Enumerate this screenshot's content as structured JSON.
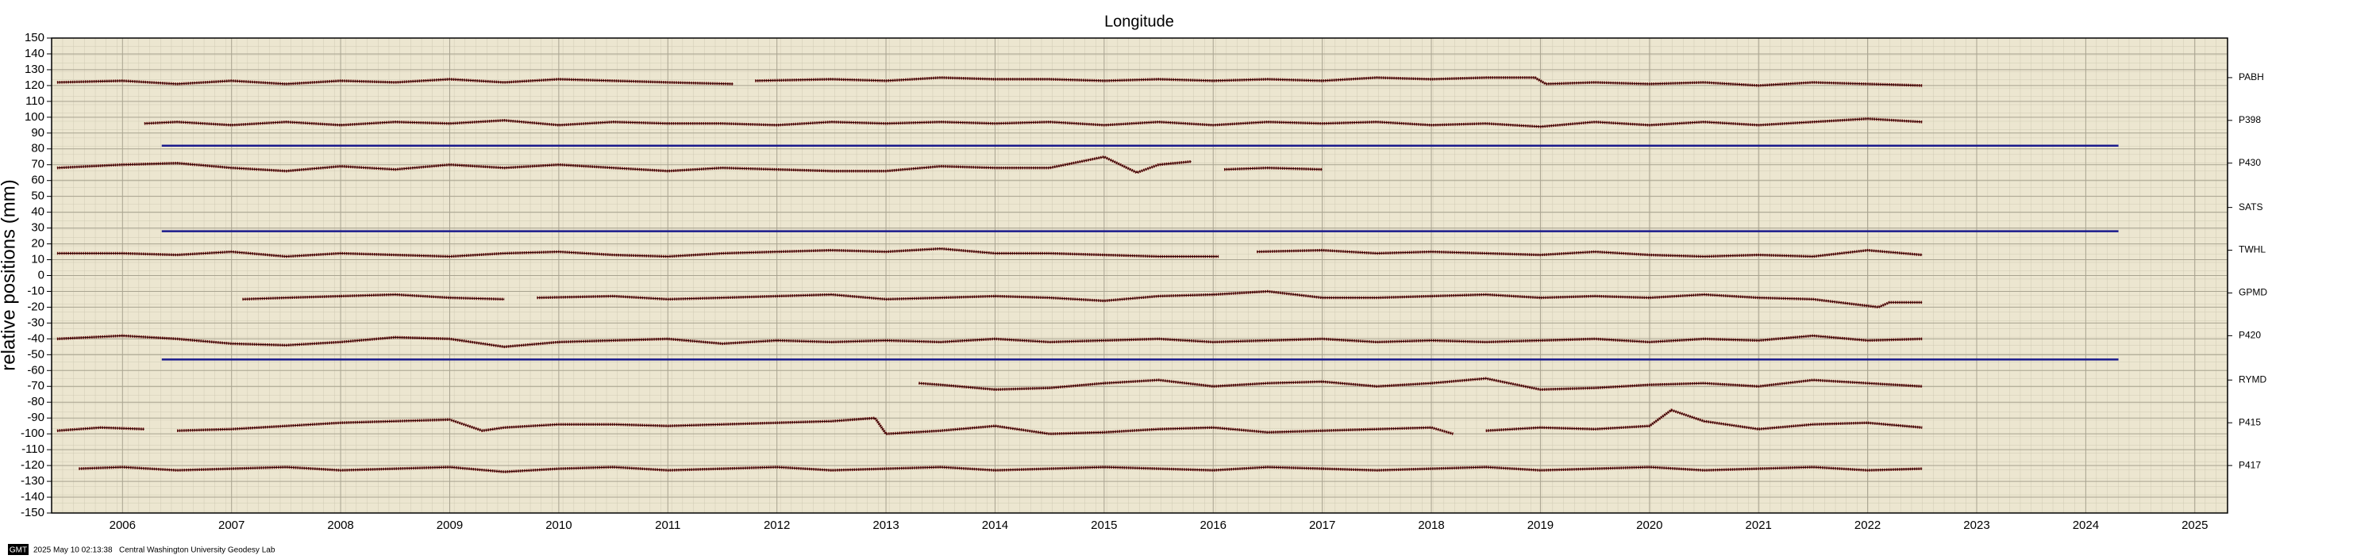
{
  "chart_data": {
    "type": "line",
    "title": "Longitude",
    "y_label": "relative positions (mm)",
    "xlim": [
      2005.85,
      2025.8
    ],
    "ylim": [
      -150,
      150
    ],
    "yticks": [
      -150,
      -140,
      -130,
      -120,
      -110,
      -100,
      -90,
      -80,
      -70,
      -60,
      -50,
      -40,
      -30,
      -20,
      -10,
      0,
      10,
      20,
      30,
      40,
      50,
      60,
      70,
      80,
      90,
      100,
      110,
      120,
      130,
      140,
      150
    ],
    "xticks": [
      {
        "value": 2006.5,
        "label": "2006"
      },
      {
        "value": 2007.5,
        "label": "2007"
      },
      {
        "value": 2008.5,
        "label": "2008"
      },
      {
        "value": 2009.5,
        "label": "2009"
      },
      {
        "value": 2010.5,
        "label": "2010"
      },
      {
        "value": 2011.5,
        "label": "2011"
      },
      {
        "value": 2012.5,
        "label": "2012"
      },
      {
        "value": 2013.5,
        "label": "2013"
      },
      {
        "value": 2014.5,
        "label": "2014"
      },
      {
        "value": 2015.5,
        "label": "2015"
      },
      {
        "value": 2016.5,
        "label": "2016"
      },
      {
        "value": 2017.5,
        "label": "2017"
      },
      {
        "value": 2018.5,
        "label": "2018"
      },
      {
        "value": 2019.5,
        "label": "2019"
      },
      {
        "value": 2020.5,
        "label": "2020"
      },
      {
        "value": 2021.5,
        "label": "2021"
      },
      {
        "value": 2022.5,
        "label": "2022"
      },
      {
        "value": 2023.5,
        "label": "2023"
      },
      {
        "value": 2024.5,
        "label": "2024"
      },
      {
        "value": 2025.5,
        "label": "2025"
      }
    ],
    "y2ticks": [
      {
        "value": 125,
        "label": "PABH"
      },
      {
        "value": 98,
        "label": "P398"
      },
      {
        "value": 71,
        "label": "P430"
      },
      {
        "value": 43,
        "label": "SATS"
      },
      {
        "value": 16,
        "label": "TWHL"
      },
      {
        "value": -11,
        "label": "GPMD"
      },
      {
        "value": -38,
        "label": "P420"
      },
      {
        "value": -66,
        "label": "RYMD"
      },
      {
        "value": -93,
        "label": "P415"
      },
      {
        "value": -120,
        "label": "P417"
      }
    ],
    "grid": true,
    "background": "#ece6d0",
    "color": "#6e0b0b",
    "hline_color": "#1a1a8c",
    "hlines": [
      {
        "y": 82,
        "x": [
          2006.86,
          2024.8
        ]
      },
      {
        "y": 28,
        "x": [
          2006.86,
          2024.8
        ]
      },
      {
        "y": -53,
        "x": [
          2006.86,
          2024.8
        ]
      }
    ],
    "series": [
      {
        "x": [
          2005.9,
          2006.5,
          2007,
          2007.5,
          2008,
          2008.5,
          2009,
          2009.5,
          2010,
          2010.5,
          2011,
          2011.5,
          2012.1,
          2012.2,
          2012.3,
          2013,
          2013.5,
          2014,
          2014.5,
          2015,
          2015.5,
          2016,
          2016.5,
          2017,
          2017.5,
          2018,
          2018.5,
          2019,
          2019.45,
          2019.55,
          2020,
          2020.5,
          2021,
          2021.5,
          2022,
          2022.5,
          2023
        ],
        "values": [
          122,
          123,
          121,
          123,
          121,
          123,
          122,
          124,
          122,
          124,
          123,
          122,
          121,
          null,
          123,
          124,
          123,
          125,
          124,
          124,
          123,
          124,
          123,
          124,
          123,
          125,
          124,
          125,
          125,
          121,
          122,
          121,
          122,
          120,
          122,
          121,
          120
        ]
      },
      {
        "x": [
          2006.7,
          2007,
          2007.5,
          2008,
          2008.5,
          2009,
          2009.5,
          2010,
          2010.5,
          2011,
          2011.5,
          2012,
          2012.5,
          2013,
          2013.5,
          2014,
          2014.5,
          2015,
          2015.5,
          2016,
          2016.5,
          2017,
          2017.5,
          2018,
          2018.5,
          2019,
          2019.5,
          2020,
          2020.5,
          2021,
          2021.5,
          2022,
          2022.5,
          2023
        ],
        "values": [
          96,
          97,
          95,
          97,
          95,
          97,
          96,
          98,
          95,
          97,
          96,
          96,
          95,
          97,
          96,
          97,
          96,
          97,
          95,
          97,
          95,
          97,
          96,
          97,
          95,
          96,
          94,
          97,
          95,
          97,
          95,
          97,
          99,
          97
        ]
      },
      {
        "x": [
          2005.9,
          2006.5,
          2007,
          2007.5,
          2008,
          2008.5,
          2009,
          2009.5,
          2010,
          2010.5,
          2011,
          2011.5,
          2012,
          2012.5,
          2013,
          2013.5,
          2014,
          2014.5,
          2015,
          2015.5,
          2015.8,
          2016,
          2016.3,
          2016.5,
          2016.6,
          2017,
          2017.5
        ],
        "values": [
          68,
          70,
          71,
          68,
          66,
          69,
          67,
          70,
          68,
          70,
          68,
          66,
          68,
          67,
          66,
          66,
          69,
          68,
          68,
          75,
          65,
          70,
          72,
          null,
          67,
          68,
          67
        ]
      },
      {
        "x": [
          2005.9,
          2006.5,
          2007,
          2007.5,
          2008,
          2008.5,
          2009,
          2009.5,
          2010,
          2010.5,
          2011,
          2011.5,
          2012,
          2012.5,
          2013,
          2013.5,
          2014,
          2014.5,
          2015,
          2015.5,
          2016,
          2016.55,
          2016.7,
          2016.9,
          2017.5,
          2018,
          2018.5,
          2019,
          2019.5,
          2020,
          2020.5,
          2021,
          2021.5,
          2022,
          2022.5,
          2023
        ],
        "values": [
          14,
          14,
          13,
          15,
          12,
          14,
          13,
          12,
          14,
          15,
          13,
          12,
          14,
          15,
          16,
          15,
          17,
          14,
          14,
          13,
          12,
          12,
          null,
          15,
          16,
          14,
          15,
          14,
          13,
          15,
          13,
          12,
          13,
          12,
          16,
          13
        ]
      },
      {
        "x": [
          2007.6,
          2008,
          2008.5,
          2009,
          2009.5,
          2010,
          2010.2,
          2010.3,
          2011,
          2011.5,
          2012,
          2012.5,
          2013,
          2013.5,
          2014,
          2014.5,
          2015,
          2015.5,
          2016,
          2016.5,
          2017,
          2017.5,
          2018,
          2018.5,
          2019,
          2019.5,
          2020,
          2020.5,
          2021,
          2021.5,
          2022,
          2022.6,
          2022.7,
          2023
        ],
        "values": [
          -15,
          -14,
          -13,
          -12,
          -14,
          -15,
          null,
          -14,
          -13,
          -15,
          -14,
          -13,
          -12,
          -15,
          -14,
          -13,
          -14,
          -16,
          -13,
          -12,
          -10,
          -14,
          -14,
          -13,
          -12,
          -14,
          -13,
          -14,
          -12,
          -14,
          -15,
          -20,
          -17,
          -17
        ]
      },
      {
        "x": [
          2005.9,
          2006.5,
          2007,
          2007.5,
          2008,
          2008.5,
          2009,
          2009.5,
          2010,
          2010.5,
          2011,
          2011.5,
          2012,
          2012.5,
          2013,
          2013.5,
          2014,
          2014.5,
          2015,
          2015.5,
          2016,
          2016.5,
          2017,
          2017.5,
          2018,
          2018.5,
          2019,
          2019.5,
          2020,
          2020.5,
          2021,
          2021.5,
          2022,
          2022.5,
          2023
        ],
        "values": [
          -40,
          -38,
          -40,
          -43,
          -44,
          -42,
          -39,
          -40,
          -45,
          -42,
          -41,
          -40,
          -43,
          -41,
          -42,
          -41,
          -42,
          -40,
          -42,
          -41,
          -40,
          -42,
          -41,
          -40,
          -42,
          -41,
          -42,
          -41,
          -40,
          -42,
          -40,
          -41,
          -38,
          -41,
          -40
        ]
      },
      {
        "x": [
          2013.8,
          2014,
          2014.5,
          2015,
          2015.5,
          2016,
          2016.5,
          2017,
          2017.5,
          2018,
          2018.5,
          2019,
          2019.5,
          2020,
          2020.5,
          2021,
          2021.5,
          2022,
          2022.5,
          2023
        ],
        "values": [
          -68,
          -69,
          -72,
          -71,
          -68,
          -66,
          -70,
          -68,
          -67,
          -70,
          -68,
          -65,
          -72,
          -71,
          -69,
          -68,
          -70,
          -66,
          -68,
          -70
        ]
      },
      {
        "x": [
          2005.9,
          2006.3,
          2006.7,
          2006.8,
          2007,
          2007.5,
          2008,
          2008.5,
          2009,
          2009.5,
          2009.8,
          2010,
          2010.5,
          2011,
          2011.5,
          2012,
          2012.5,
          2013,
          2013.4,
          2013.5,
          2014,
          2014.5,
          2015,
          2015.5,
          2016,
          2016.5,
          2017,
          2017.5,
          2018,
          2018.5,
          2018.7,
          2018.8,
          2019,
          2019.5,
          2020,
          2020.5,
          2020.7,
          2021,
          2021.5,
          2022,
          2022.5,
          2023
        ],
        "values": [
          -98,
          -96,
          -97,
          null,
          -98,
          -97,
          -95,
          -93,
          -92,
          -91,
          -98,
          -96,
          -94,
          -94,
          -95,
          -94,
          -93,
          -92,
          -90,
          -100,
          -98,
          -95,
          -100,
          -99,
          -97,
          -96,
          -99,
          -98,
          -97,
          -96,
          -100,
          null,
          -98,
          -96,
          -97,
          -95,
          -85,
          -92,
          -97,
          -94,
          -93,
          -96
        ]
      },
      {
        "x": [
          2006.1,
          2006.5,
          2007,
          2007.5,
          2008,
          2008.5,
          2009,
          2009.5,
          2010,
          2010.5,
          2011,
          2011.5,
          2012,
          2012.5,
          2013,
          2013.5,
          2014,
          2014.5,
          2015,
          2015.5,
          2016,
          2016.5,
          2017,
          2017.5,
          2018,
          2018.5,
          2019,
          2019.5,
          2020,
          2020.5,
          2021,
          2021.5,
          2022,
          2022.5,
          2023
        ],
        "values": [
          -122,
          -121,
          -123,
          -122,
          -121,
          -123,
          -122,
          -121,
          -124,
          -122,
          -121,
          -123,
          -122,
          -121,
          -123,
          -122,
          -121,
          -123,
          -122,
          -121,
          -122,
          -123,
          -121,
          -122,
          -123,
          -122,
          -121,
          -123,
          -122,
          -121,
          -123,
          -122,
          -121,
          -123,
          -122
        ]
      }
    ]
  },
  "footer": {
    "badge": "GMT",
    "timestamp": "2025 May 10 02:13:38",
    "credit": "Central Washington University Geodesy Lab"
  }
}
